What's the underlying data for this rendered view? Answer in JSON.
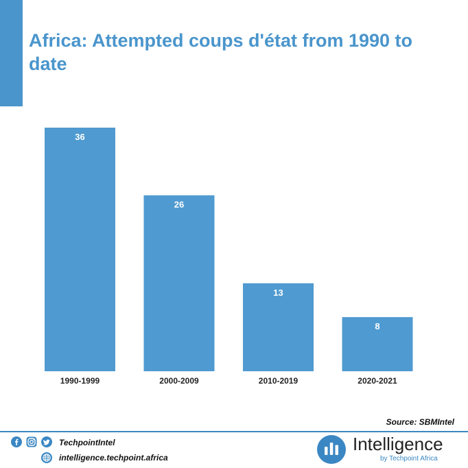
{
  "header": {
    "title": "Africa: Attempted coups d'état from 1990 to date"
  },
  "chart_data": {
    "type": "bar",
    "title": "Africa: Attempted coups d'état from 1990 to date",
    "categories": [
      "1990-1999",
      "2000-2009",
      "2010-2019",
      "2020-2021"
    ],
    "values": [
      36,
      26,
      13,
      8
    ],
    "data_labels": [
      "36",
      "26",
      "13",
      "8"
    ],
    "xlabel": "",
    "ylabel": "",
    "ylim": [
      0,
      36
    ],
    "grid": false,
    "legend": "none"
  },
  "source": {
    "text": "Source: SBMIntel"
  },
  "footer": {
    "social_handle": "TechpointIntel",
    "website": "intelligence.techpoint.africa",
    "brand_name": "Intelligence",
    "brand_tagline": "by Techpoint Africa",
    "icons": [
      "facebook-icon",
      "instagram-icon",
      "twitter-icon",
      "globe-icon",
      "intelligence-logo-icon"
    ]
  },
  "colors": {
    "accent": "#4a95cc",
    "bar": "#4f9ad0",
    "footer_line": "#3a87c3"
  }
}
